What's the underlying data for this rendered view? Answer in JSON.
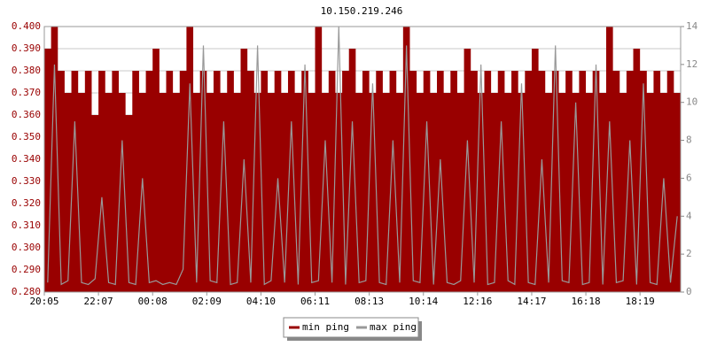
{
  "chart_data": {
    "type": "area-line",
    "title": "10.150.219.246",
    "categories": [
      "20:05",
      null,
      null,
      null,
      null,
      null,
      null,
      null,
      "22:07",
      null,
      null,
      null,
      null,
      null,
      null,
      null,
      "00:08",
      null,
      null,
      null,
      null,
      null,
      null,
      null,
      "02:09",
      null,
      null,
      null,
      null,
      null,
      null,
      null,
      "04:10",
      null,
      null,
      null,
      null,
      null,
      null,
      null,
      "06:11",
      null,
      null,
      null,
      null,
      null,
      null,
      null,
      "08:13",
      null,
      null,
      null,
      null,
      null,
      null,
      null,
      "10:14",
      null,
      null,
      null,
      null,
      null,
      null,
      null,
      "12:16",
      null,
      null,
      null,
      null,
      null,
      null,
      null,
      "14:17",
      null,
      null,
      null,
      null,
      null,
      null,
      null,
      "16:18",
      null,
      null,
      null,
      null,
      null,
      null,
      null,
      "18:19",
      null,
      null,
      null,
      null,
      null
    ],
    "series": [
      {
        "name": "min ping",
        "color": "#990000",
        "axis": "y",
        "values": [
          0.39,
          0.4,
          0.38,
          0.37,
          0.38,
          0.37,
          0.38,
          0.36,
          0.38,
          0.37,
          0.38,
          0.37,
          0.36,
          0.38,
          0.37,
          0.38,
          0.39,
          0.37,
          0.38,
          0.37,
          0.38,
          0.4,
          0.37,
          0.38,
          0.37,
          0.38,
          0.37,
          0.38,
          0.37,
          0.39,
          0.38,
          0.37,
          0.38,
          0.37,
          0.38,
          0.37,
          0.38,
          0.37,
          0.38,
          0.37,
          0.4,
          0.37,
          0.38,
          0.37,
          0.38,
          0.39,
          0.37,
          0.38,
          0.37,
          0.38,
          0.37,
          0.38,
          0.37,
          0.4,
          0.38,
          0.37,
          0.38,
          0.37,
          0.38,
          0.37,
          0.38,
          0.37,
          0.39,
          0.38,
          0.37,
          0.38,
          0.37,
          0.38,
          0.37,
          0.38,
          0.37,
          0.38,
          0.39,
          0.38,
          0.37,
          0.38,
          0.37,
          0.38,
          0.37,
          0.38,
          0.37,
          0.38,
          0.37,
          0.4,
          0.38,
          0.37,
          0.38,
          0.39,
          0.38,
          0.37,
          0.38,
          0.37,
          0.38,
          0.37
        ]
      },
      {
        "name": "max ping",
        "color": "#999999",
        "axis": "y2",
        "values": [
          0.5,
          12,
          0.4,
          0.6,
          9,
          0.5,
          0.4,
          0.7,
          5,
          0.5,
          0.4,
          8,
          0.5,
          0.4,
          6,
          0.5,
          0.6,
          0.4,
          0.5,
          0.4,
          1.2,
          11,
          0.5,
          13,
          0.6,
          0.5,
          9,
          0.4,
          0.5,
          7,
          0.5,
          13,
          0.4,
          0.6,
          6,
          0.5,
          9,
          0.4,
          12,
          0.5,
          0.6,
          8,
          0.5,
          14,
          0.4,
          9,
          0.5,
          0.6,
          11,
          0.5,
          0.4,
          8,
          0.5,
          13,
          0.6,
          0.5,
          9,
          0.4,
          7,
          0.5,
          0.4,
          0.6,
          8,
          0.5,
          12,
          0.4,
          0.5,
          9,
          0.6,
          0.4,
          11,
          0.5,
          0.4,
          7,
          0.5,
          13,
          0.6,
          0.5,
          10,
          0.4,
          0.5,
          12,
          0.4,
          9,
          0.5,
          0.6,
          8,
          0.4,
          11,
          0.5,
          0.4,
          6,
          0.5,
          4
        ]
      }
    ],
    "ylim": [
      0.28,
      0.4
    ],
    "yticks": [
      {
        "value": 0.28,
        "label": "0.280"
      },
      {
        "value": 0.29,
        "label": "0.290"
      },
      {
        "value": 0.3,
        "label": "0.300"
      },
      {
        "value": 0.31,
        "label": "0.310"
      },
      {
        "value": 0.32,
        "label": "0.320"
      },
      {
        "value": 0.33,
        "label": "0.330"
      },
      {
        "value": 0.34,
        "label": "0.340"
      },
      {
        "value": 0.35,
        "label": "0.350"
      },
      {
        "value": 0.36,
        "label": "0.360"
      },
      {
        "value": 0.37,
        "label": "0.370"
      },
      {
        "value": 0.38,
        "label": "0.380"
      },
      {
        "value": 0.39,
        "label": "0.390"
      },
      {
        "value": 0.4,
        "label": "0.400"
      }
    ],
    "y2lim": [
      0,
      14
    ],
    "y2ticks": [
      0,
      2,
      4,
      6,
      8,
      10,
      12,
      14
    ],
    "grid": true
  }
}
